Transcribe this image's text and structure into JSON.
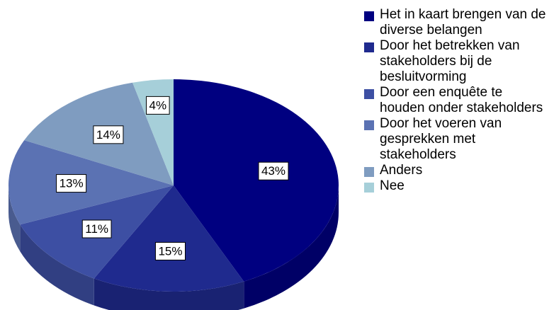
{
  "chart_data": {
    "type": "pie",
    "categories": [
      "Het in kaart brengen van de diverse belangen",
      "Door het betrekken van stakeholders bij de besluitvorming",
      "Door een enquête te houden onder stakeholders",
      "Door het voeren van gesprekken met stakeholders",
      "Anders",
      "Nee"
    ],
    "values": [
      43,
      15,
      11,
      13,
      14,
      4
    ],
    "value_labels": [
      "43%",
      "15%",
      "11%",
      "13%",
      "14%",
      "4%"
    ],
    "colors": [
      "#000080",
      "#1f2a8e",
      "#3d4fa3",
      "#5b72b3",
      "#7f9cc0",
      "#a6cfd9"
    ],
    "legend": "right"
  }
}
